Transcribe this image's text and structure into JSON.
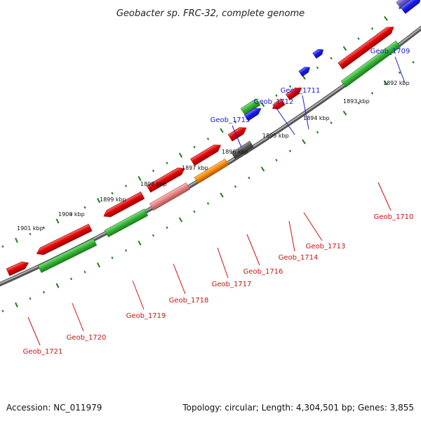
{
  "title": "Geobacter sp. FRC-32, complete genome",
  "footer": {
    "accession": "Accession: NC_011979",
    "summary": "Topology: circular; Length: 4,304,501 bp; Genes: 3,855"
  },
  "colors": {
    "backbone": "#7a7a7a",
    "tick": "#1e7a1e",
    "label_blue": "#1a1acc",
    "label_red": "#cc1111",
    "red": "#e60000",
    "green": "#33b833",
    "blue": "#1a1af0",
    "orange": "#ff8c00",
    "gray": "#555555",
    "pink": "#f08080",
    "purple": "#6a5acd"
  },
  "scale_labels": [
    "1892 kbp",
    "1893 kbp",
    "1894 kbp",
    "1895 kbp",
    "1896 kbp",
    "1897 kbp",
    "1898 kbp",
    "1899 kbp",
    "1900 kbp",
    "1901 kbp"
  ],
  "genes": [
    {
      "name": "Geob_1709",
      "color": "purple",
      "strand": "top"
    },
    {
      "name": "Geob_1710",
      "color": "green",
      "strand": "bottom"
    },
    {
      "name": "Geob_1711",
      "color": "blue",
      "strand": "top"
    },
    {
      "name": "Geob_1712",
      "color": "blue",
      "strand": "top"
    },
    {
      "name": "Geob_1713",
      "color": "red",
      "strand": "bottom"
    },
    {
      "name": "Geob_1714",
      "color": "red",
      "strand": "bottom"
    },
    {
      "name": "Geob_1715",
      "color": "green",
      "strand": "top"
    },
    {
      "name": "Geob_1716",
      "color": "gray",
      "strand": "bottom"
    },
    {
      "name": "Geob_1717",
      "color": "orange",
      "strand": "bottom"
    },
    {
      "name": "Geob_1718",
      "color": "pink",
      "strand": "bottom"
    },
    {
      "name": "Geob_1719",
      "color": "green",
      "strand": "bottom"
    },
    {
      "name": "Geob_1720",
      "color": "green",
      "strand": "bottom"
    },
    {
      "name": "Geob_1721",
      "color": "red",
      "strand": "bottom"
    }
  ]
}
